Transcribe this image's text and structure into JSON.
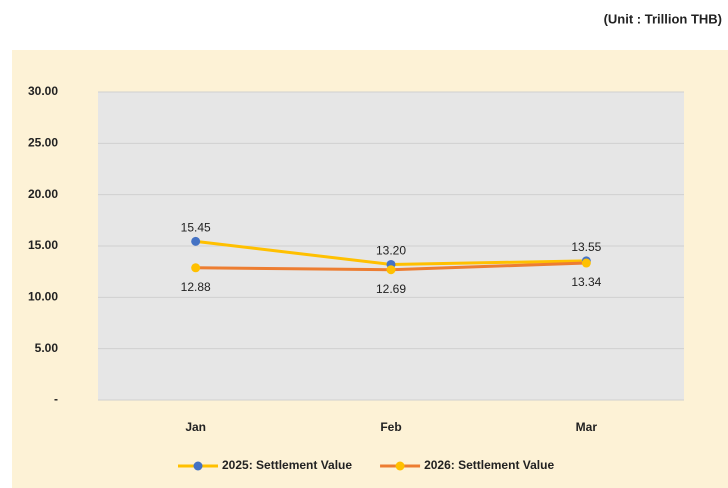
{
  "chart_data": {
    "type": "line",
    "unit_label": "(Unit : Trillion THB)",
    "categories": [
      "Jan",
      "Feb",
      "Mar"
    ],
    "series": [
      {
        "name": "2025: Settlement Value",
        "color": "#ffc000",
        "marker_color": "#4472c4",
        "values": [
          15.45,
          13.2,
          13.55
        ],
        "value_labels": [
          "15.45",
          "13.20",
          "13.55"
        ]
      },
      {
        "name": "2026: Settlement Value",
        "color": "#ed7d31",
        "marker_color": "#ffc000",
        "values": [
          12.88,
          12.69,
          13.34
        ],
        "value_labels": [
          "12.88",
          "12.69",
          "13.34"
        ]
      }
    ],
    "ylim": [
      0,
      30
    ],
    "yticks": [
      {
        "value": 0,
        "label": "-"
      },
      {
        "value": 5,
        "label": "5.00"
      },
      {
        "value": 10,
        "label": "10.00"
      },
      {
        "value": 15,
        "label": "15.00"
      },
      {
        "value": 20,
        "label": "20.00"
      },
      {
        "value": 25,
        "label": "25.00"
      },
      {
        "value": 30,
        "label": "30.00"
      }
    ],
    "grid": true,
    "legend": "bottom"
  }
}
